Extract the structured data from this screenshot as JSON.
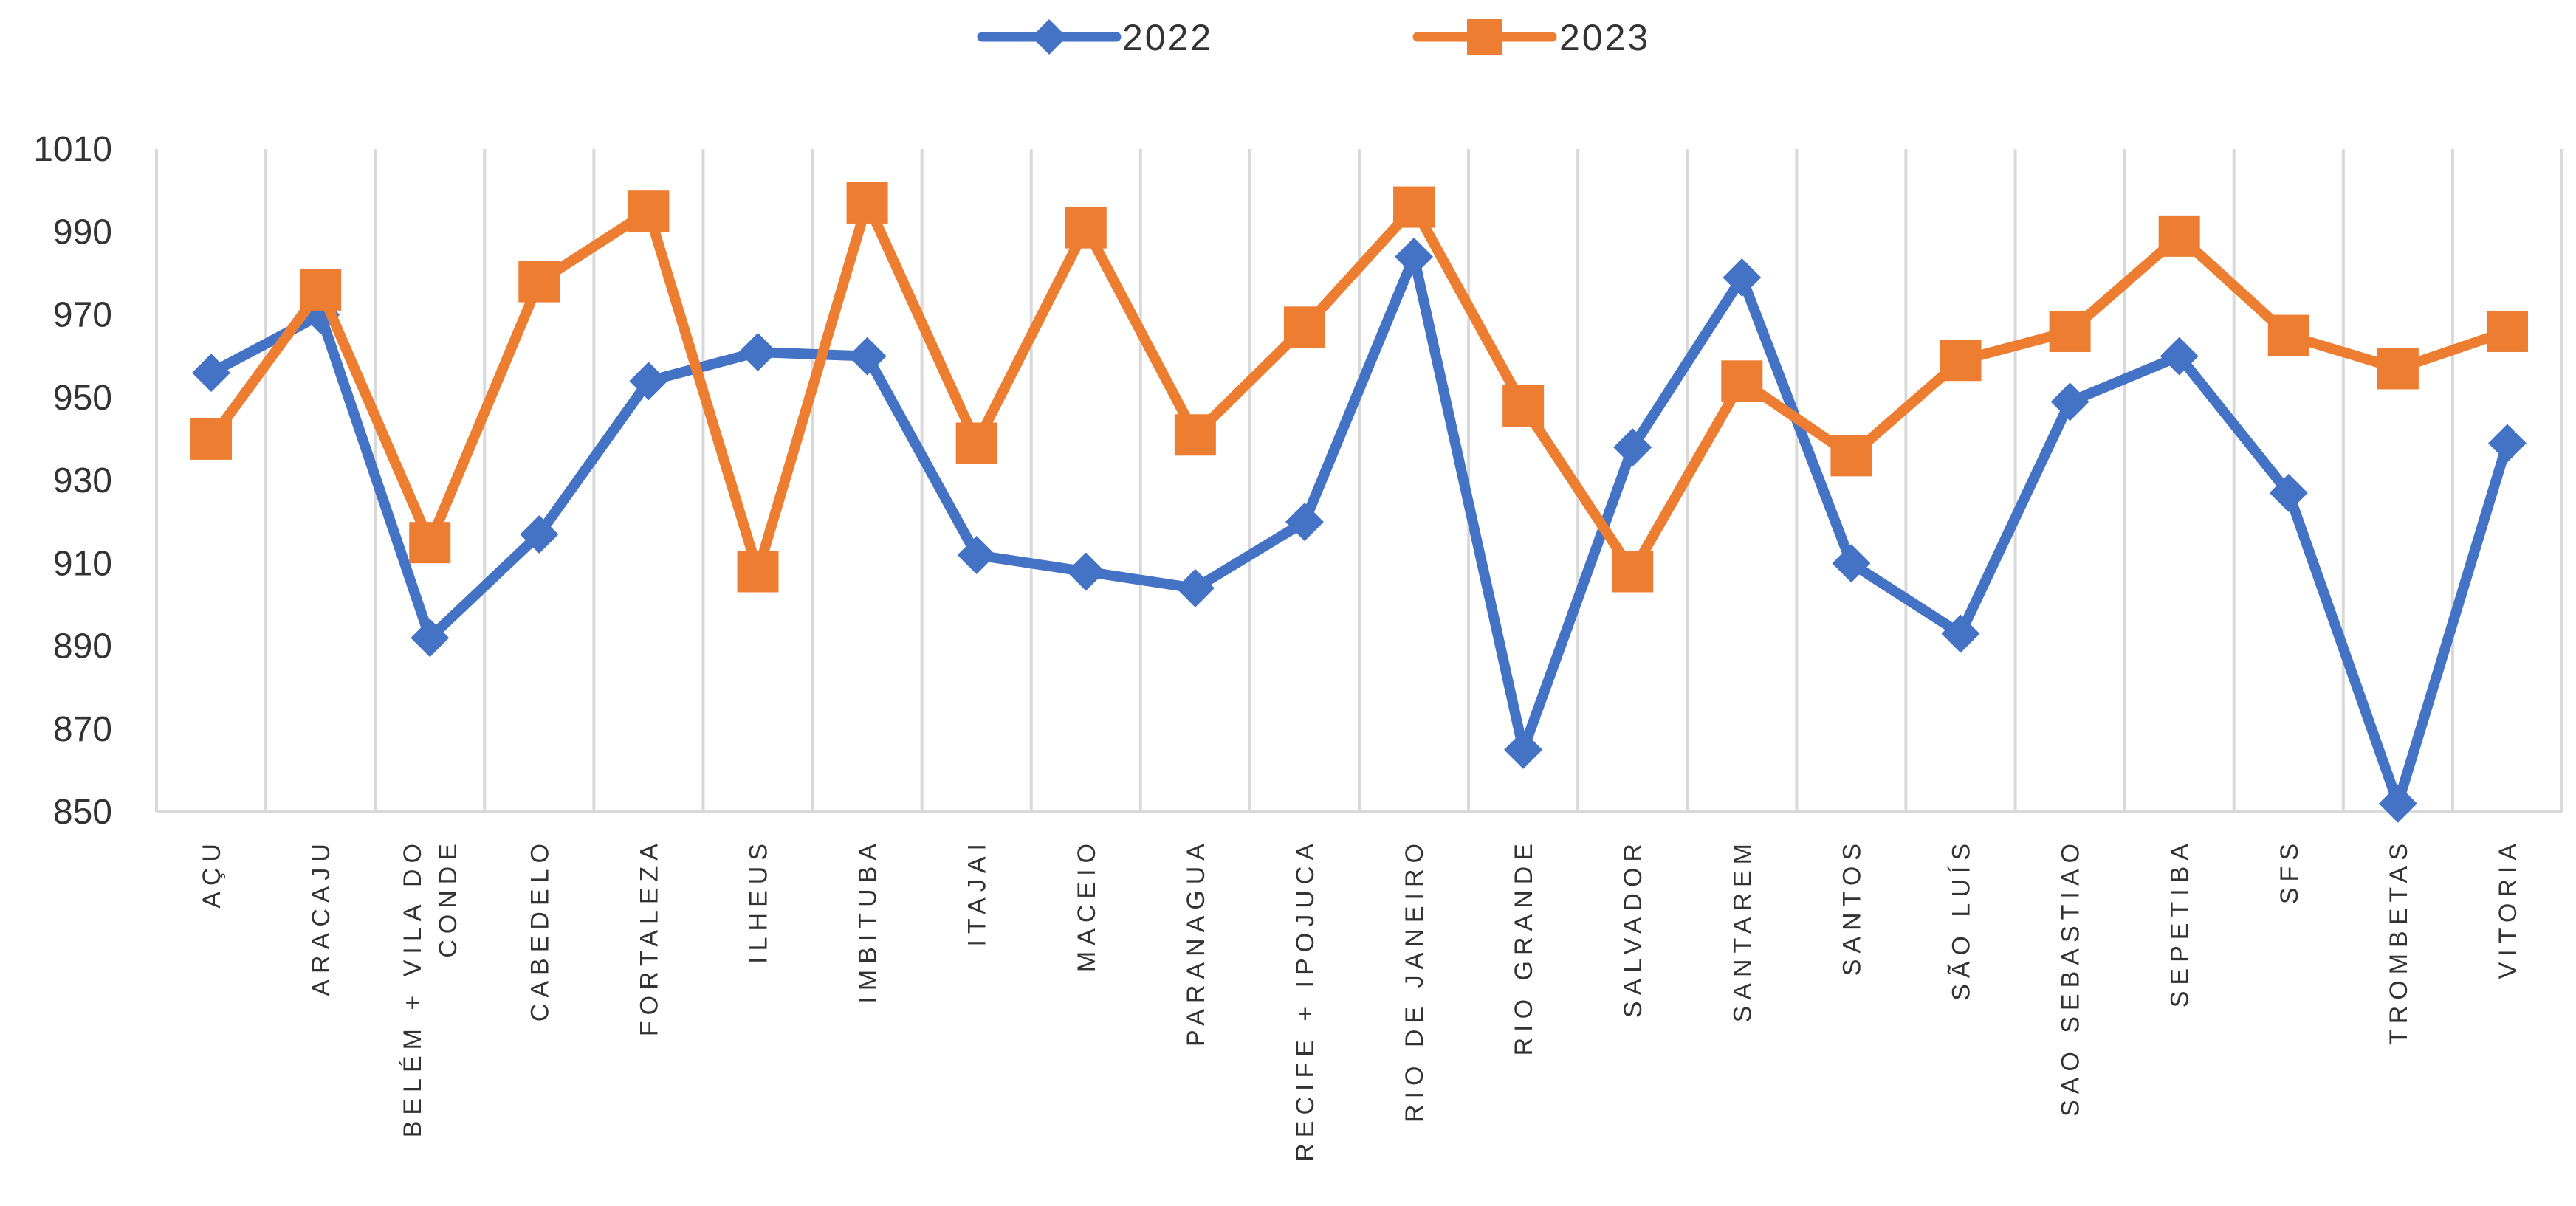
{
  "chart_data": {
    "type": "line",
    "title": "",
    "xlabel": "",
    "ylabel": "",
    "ylim": [
      850,
      1010
    ],
    "yticks": [
      850,
      870,
      890,
      910,
      930,
      950,
      970,
      990,
      1010
    ],
    "grid": "vertical",
    "legend_position": "top-center",
    "categories": [
      [
        "AÇU"
      ],
      [
        "ARACAJU"
      ],
      [
        "BELÉM + VILA DO",
        "CONDE"
      ],
      [
        "CABEDELO"
      ],
      [
        "FORTALEZA"
      ],
      [
        "ILHEUS"
      ],
      [
        "IMBITUBA"
      ],
      [
        "ITAJAI"
      ],
      [
        "MACEIO"
      ],
      [
        "PARANAGUA"
      ],
      [
        "RECIFE + IPOJUCA"
      ],
      [
        "RIO DE JANEIRO"
      ],
      [
        "RIO GRANDE"
      ],
      [
        "SALVADOR"
      ],
      [
        "SANTAREM"
      ],
      [
        "SANTOS"
      ],
      [
        "SÃO LUÍS"
      ],
      [
        "SAO SEBASTIAO"
      ],
      [
        "SEPETIBA"
      ],
      [
        "SFS"
      ],
      [
        "TROMBETAS"
      ],
      [
        "VITORIA"
      ]
    ],
    "series": [
      {
        "name": "2022",
        "color": "#4472C4",
        "marker": "diamond",
        "values": [
          956,
          970,
          892,
          917,
          954,
          961,
          960,
          912,
          908,
          904,
          920,
          984,
          865,
          938,
          979,
          910,
          893,
          949,
          960,
          927,
          852,
          939
        ]
      },
      {
        "name": "2023",
        "color": "#ED7D31",
        "marker": "square",
        "values": [
          940,
          976,
          915,
          978,
          995,
          908,
          997,
          939,
          991,
          941,
          967,
          996,
          948,
          908,
          954,
          936,
          959,
          966,
          989,
          965,
          957,
          966
        ]
      }
    ]
  }
}
